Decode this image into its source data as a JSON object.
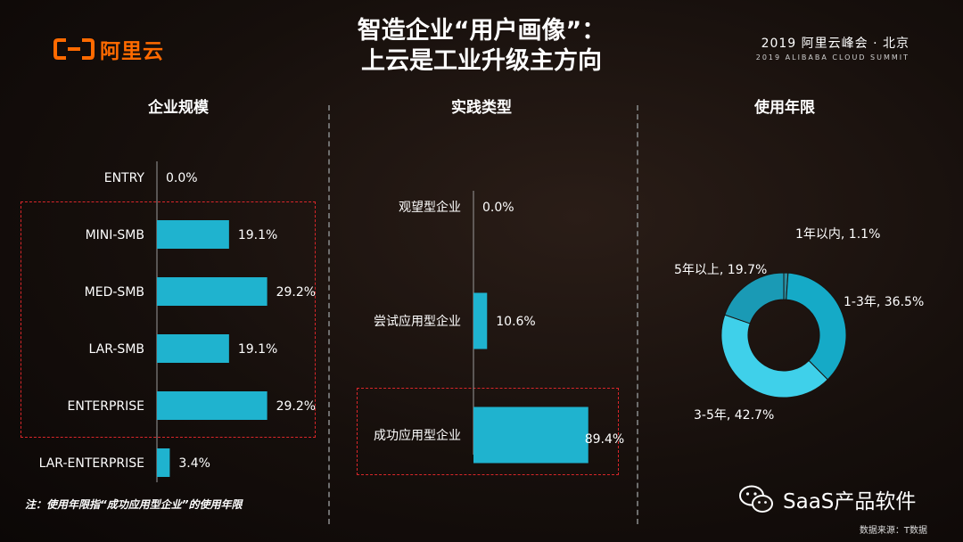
{
  "header": {
    "logo_text": "阿里云",
    "title_line1": "智造企业“用户画像”：",
    "title_line2": "上云是工业升级主方向",
    "summit_main": "2019 阿里云峰会 · 北京",
    "summit_sub": "2019 ALIBABA CLOUD SUMMIT"
  },
  "footer": {
    "footnote": "注：使用年限指“成功应用型企业”的使用年限",
    "source": "数据来源：T数据",
    "watermark": "SaaS产品软件"
  },
  "colors": {
    "bar": "#1fb3cf",
    "accent": "#ff6a00",
    "highlight_box": "#d9262a"
  },
  "chart_data": [
    {
      "type": "bar",
      "orientation": "horizontal",
      "title": "企业规模",
      "categories": [
        "ENTRY",
        "MINI-SMB",
        "MED-SMB",
        "LAR-SMB",
        "ENTERPRISE",
        "LAR-ENTERPRISE"
      ],
      "values": [
        0.0,
        19.1,
        29.2,
        19.1,
        29.2,
        3.4
      ],
      "labels": [
        "0.0%",
        "19.1%",
        "29.2%",
        "19.1%",
        "29.2%",
        "3.4%"
      ],
      "xlim": [
        0,
        30
      ],
      "highlighted": [
        "MINI-SMB",
        "MED-SMB",
        "LAR-SMB",
        "ENTERPRISE"
      ]
    },
    {
      "type": "bar",
      "orientation": "horizontal",
      "title": "实践类型",
      "categories": [
        "观望型企业",
        "尝试应用型企业",
        "成功应用型企业"
      ],
      "values": [
        0.0,
        10.6,
        89.4
      ],
      "labels": [
        "0.0%",
        "10.6%",
        "89.4%"
      ],
      "xlim": [
        0,
        100
      ],
      "highlighted": [
        "成功应用型企业"
      ]
    },
    {
      "type": "pie",
      "donut": true,
      "title": "使用年限",
      "categories": [
        "1年以内",
        "1-3年",
        "3-5年",
        "5年以上"
      ],
      "values": [
        1.1,
        36.5,
        42.7,
        19.7
      ],
      "labels": [
        "1年以内, 1.1%",
        "1-3年, 36.5%",
        "3-5年, 42.7%",
        "5年以上, 19.7%"
      ],
      "colors": [
        "#2a8fa3",
        "#15aac7",
        "#3fd0ea",
        "#1a9ab5"
      ]
    }
  ]
}
